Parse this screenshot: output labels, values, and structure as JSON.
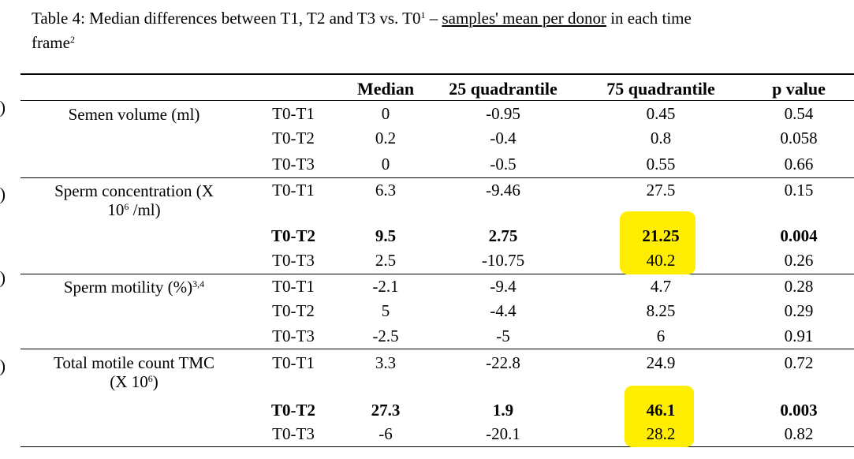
{
  "caption": {
    "line1_a": "Table 4: Median differences between T1, T2 and T3 vs. T0",
    "sup1": "1",
    "dash": " – ",
    "underlined": "samples' mean per donor",
    "line1_b": " in each time",
    "line2": "frame",
    "sup2": "2"
  },
  "headers": {
    "median": "Median",
    "q25": "25 quadrantile",
    "q75": "75 quadrantile",
    "p": "p value"
  },
  "groups": [
    {
      "label": "Semen volume (ml)"
    },
    {
      "label_a": "Sperm concentration (X",
      "label_b": "10",
      "label_sup": "6",
      "label_c": " /ml)"
    },
    {
      "label": "Sperm motility (%)",
      "label_sup": "3,4"
    },
    {
      "label_a": "Total motile count TMC",
      "label_b": "(X 10",
      "label_sup": "6",
      "label_c": ")"
    }
  ],
  "rows": [
    {
      "comp": "T0-T1",
      "median": "0",
      "q25": "-0.95",
      "q75": "0.45",
      "p": "0.54"
    },
    {
      "comp": "T0-T2",
      "median": "0.2",
      "q25": "-0.4",
      "q75": "0.8",
      "p": "0.058"
    },
    {
      "comp": "T0-T3",
      "median": "0",
      "q25": "-0.5",
      "q75": "0.55",
      "p": "0.66"
    },
    {
      "comp": "T0-T1",
      "median": "6.3",
      "q25": "-9.46",
      "q75": "27.5",
      "p": "0.15"
    },
    {
      "comp": "T0-T2",
      "median": "9.5",
      "q25": "2.75",
      "q75": "21.25",
      "p": "0.004",
      "bold": true
    },
    {
      "comp": "T0-T3",
      "median": "2.5",
      "q25": "-10.75",
      "q75": "40.2",
      "p": "0.26"
    },
    {
      "comp": "T0-T1",
      "median": "-2.1",
      "q25": "-9.4",
      "q75": "4.7",
      "p": "0.28"
    },
    {
      "comp": "T0-T2",
      "median": "5",
      "q25": "-4.4",
      "q75": "8.25",
      "p": "0.29"
    },
    {
      "comp": "T0-T3",
      "median": "-2.5",
      "q25": "-5",
      "q75": "6",
      "p": "0.91"
    },
    {
      "comp": "T0-T1",
      "median": "3.3",
      "q25": "-22.8",
      "q75": "24.9",
      "p": "0.72"
    },
    {
      "comp": "T0-T2",
      "median": "27.3",
      "q25": "1.9",
      "q75": "46.1",
      "p": "0.003",
      "bold": true
    },
    {
      "comp": "T0-T3",
      "median": "-6",
      "q25": "-20.1",
      "q75": "28.2",
      "p": "0.82"
    }
  ],
  "highlight_color": "#ffee00"
}
